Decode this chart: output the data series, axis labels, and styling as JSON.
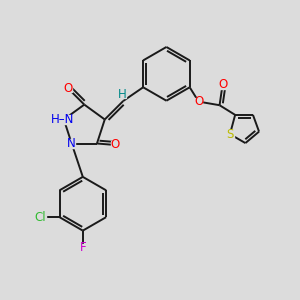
{
  "bg_color": "#dcdcdc",
  "bond_color": "#1a1a1a",
  "bond_width": 1.4,
  "atom_colors": {
    "O": "#ff0000",
    "N": "#0000ee",
    "S": "#bbbb00",
    "Cl": "#33bb33",
    "F": "#cc00cc",
    "H": "#008888",
    "C": "#1a1a1a"
  },
  "font_size": 8.5,
  "fig_size": [
    3.0,
    3.0
  ],
  "dpi": 100
}
